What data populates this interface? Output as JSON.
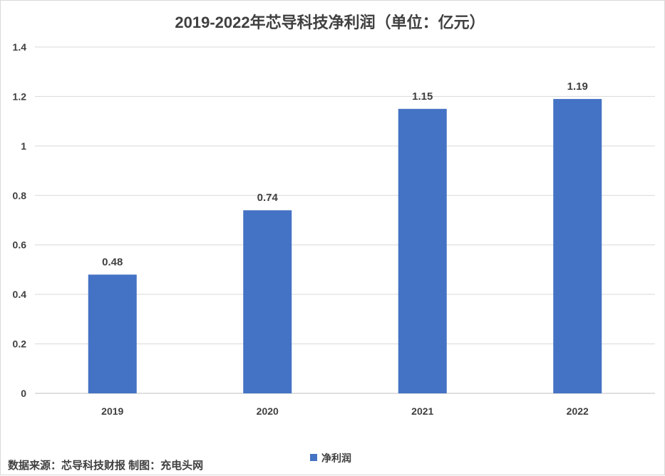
{
  "source_note": "数据来源：芯导科技财报  制图：充电头网",
  "chart_data": {
    "type": "bar",
    "title": "2019-2022年芯导科技净利润（单位：亿元）",
    "categories": [
      "2019",
      "2020",
      "2021",
      "2022"
    ],
    "series": [
      {
        "name": "净利润",
        "values": [
          0.48,
          0.74,
          1.15,
          1.19
        ],
        "color": "#4472C4"
      }
    ],
    "data_labels": [
      "0.48",
      "0.74",
      "1.15",
      "1.19"
    ],
    "y_ticks": [
      "0",
      "0.2",
      "0.4",
      "0.6",
      "0.8",
      "1",
      "1.2",
      "1.4"
    ],
    "ylim": [
      0,
      1.4
    ],
    "grid": true,
    "legend": "bottom"
  }
}
